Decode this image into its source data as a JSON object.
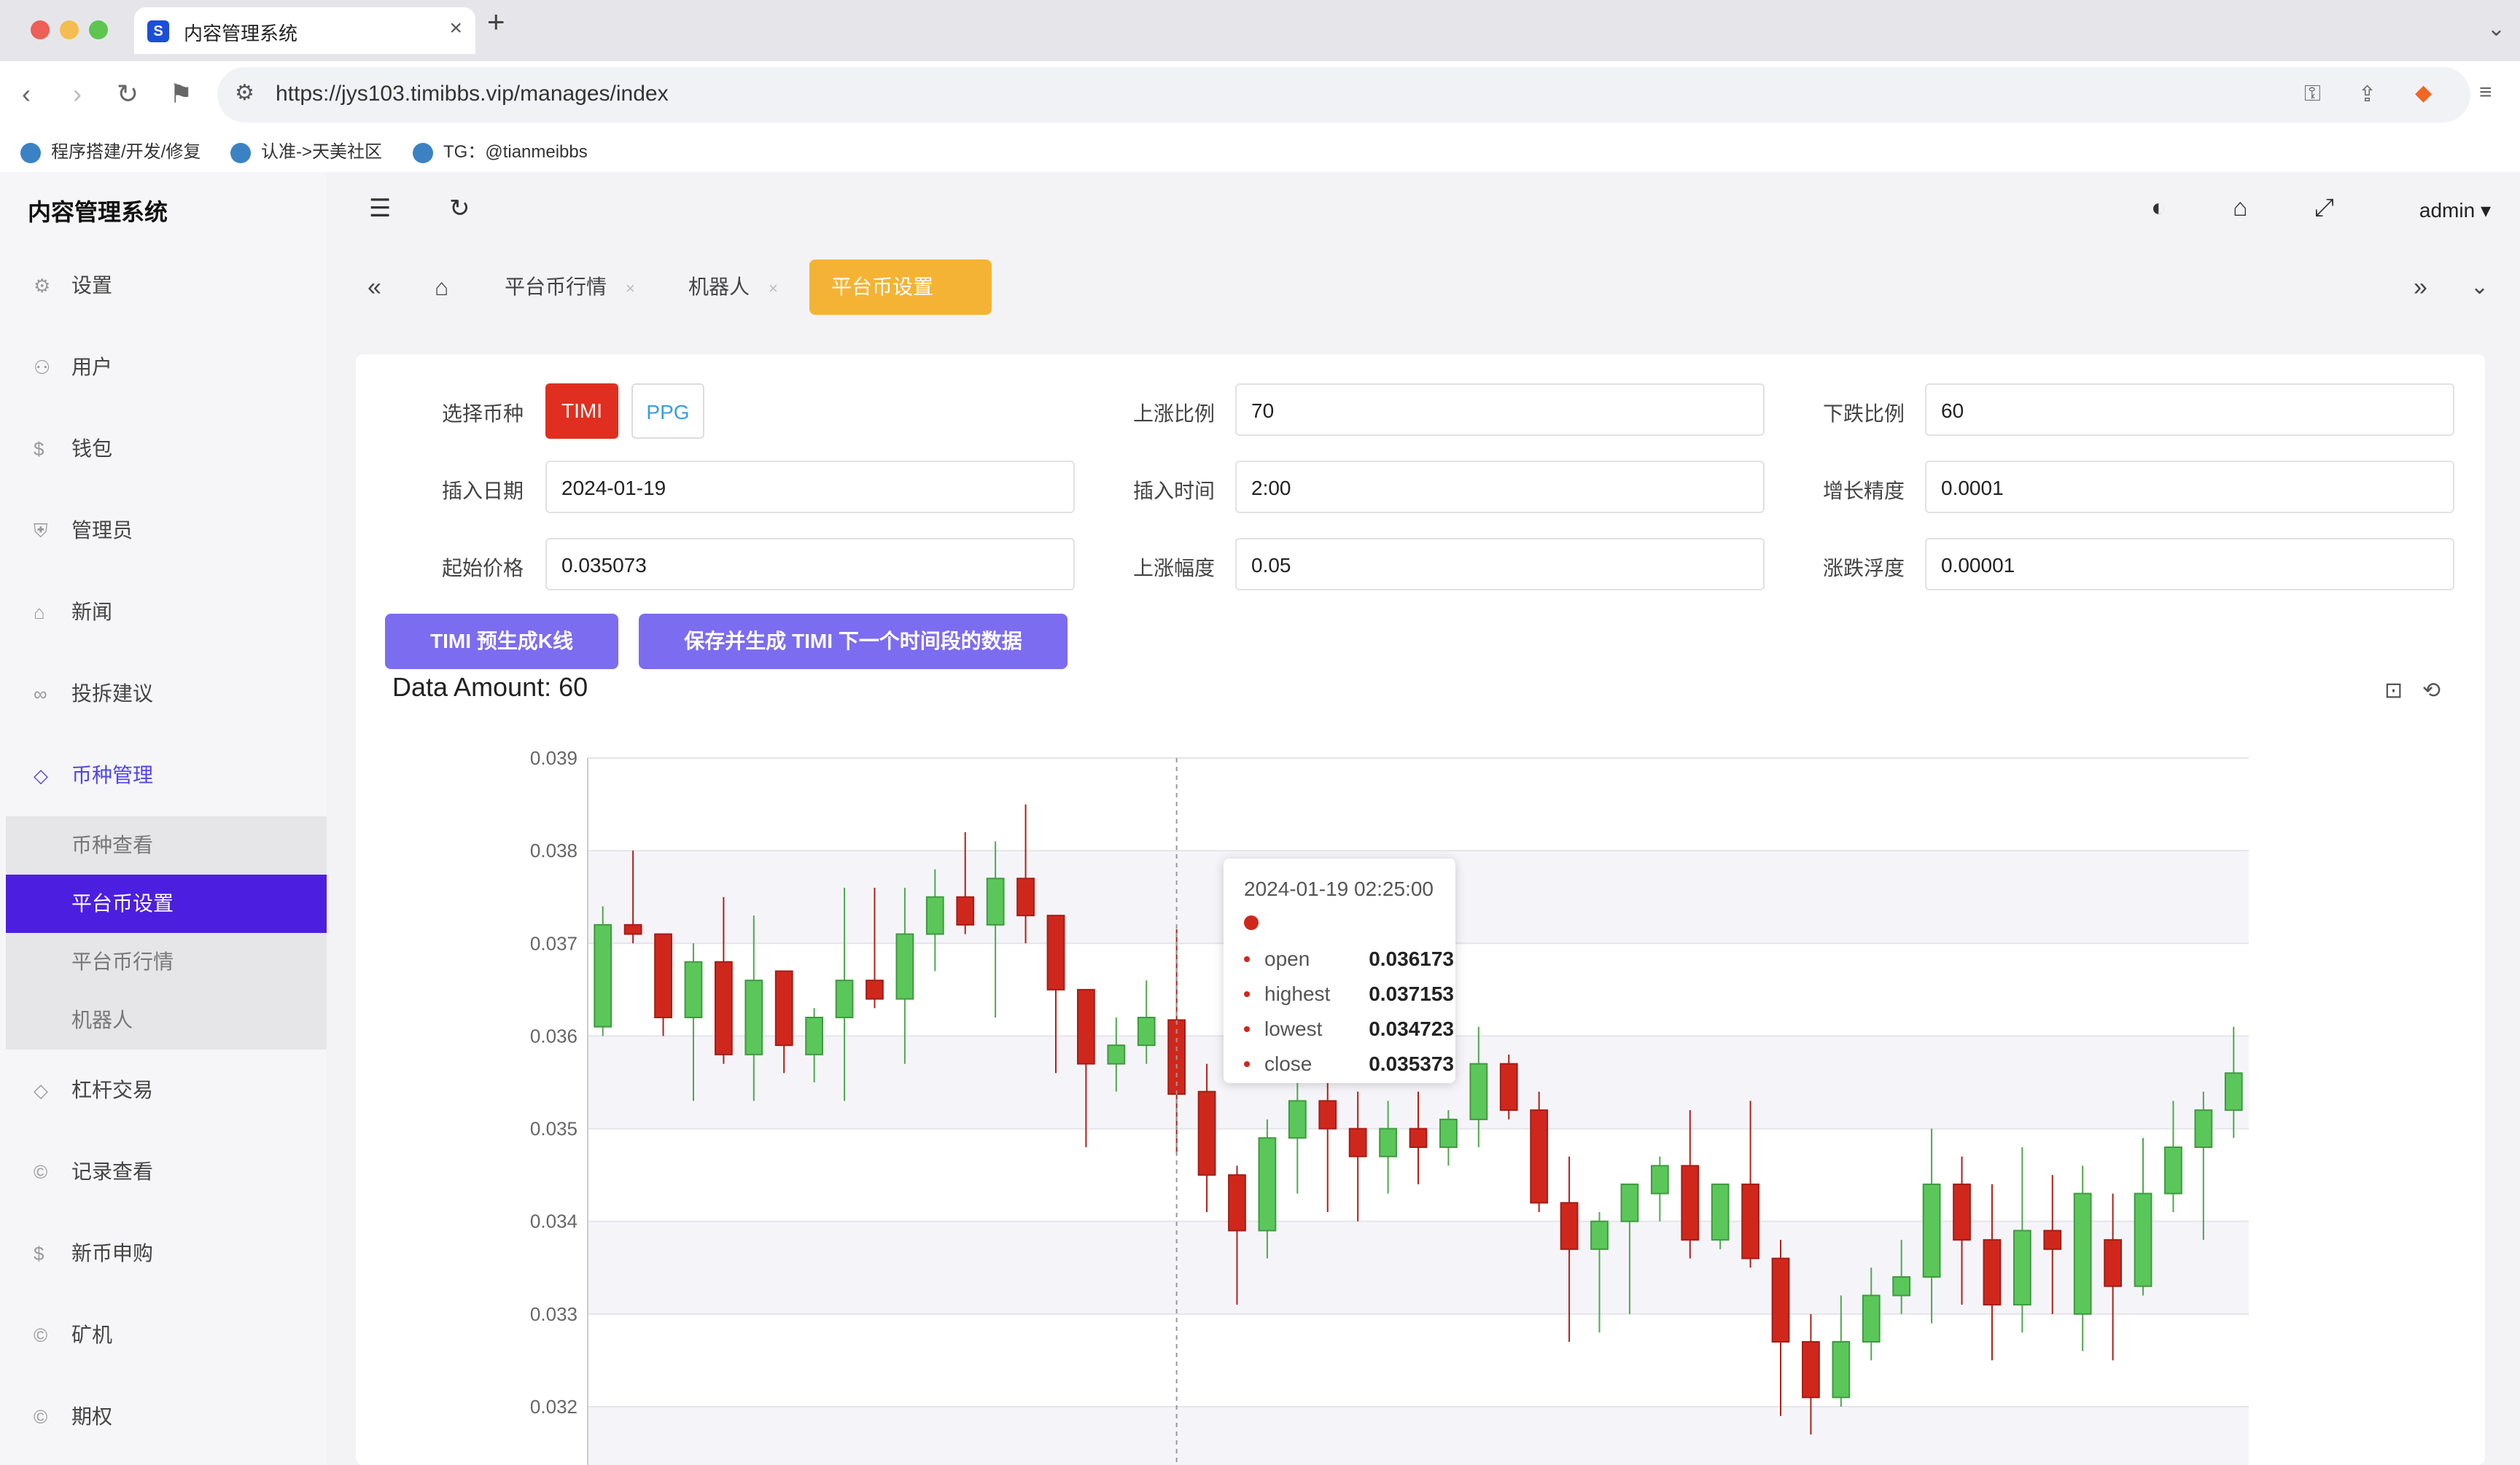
{
  "browser": {
    "tab_title": "内容管理系统",
    "url": "https://jys103.timibbs.vip/manages/index",
    "bookmarks": [
      "程序搭建/开发/修复",
      "认准->天美社区",
      "TG：@tianmeibbs"
    ]
  },
  "app": {
    "title": "内容管理系统",
    "user": "admin"
  },
  "sidebar": {
    "items": [
      {
        "label": "设置",
        "icon": "gear-icon"
      },
      {
        "label": "用户",
        "icon": "user-icon"
      },
      {
        "label": "钱包",
        "icon": "coin-icon"
      },
      {
        "label": "管理员",
        "icon": "shield-icon"
      },
      {
        "label": "新闻",
        "icon": "tag-icon"
      },
      {
        "label": "投拆建议",
        "icon": "link-icon"
      },
      {
        "label": "币种管理",
        "icon": "diamond-icon"
      }
    ],
    "submenu": [
      "币种查看",
      "平台币设置",
      "平台币行情",
      "机器人"
    ],
    "items2": [
      {
        "label": "杠杆交易",
        "icon": "diamond-icon"
      },
      {
        "label": "记录查看",
        "icon": "copyright-icon"
      },
      {
        "label": "新币申购",
        "icon": "coin-icon"
      },
      {
        "label": "矿机",
        "icon": "copyright-icon"
      },
      {
        "label": "期权",
        "icon": "copyright-icon"
      }
    ]
  },
  "tabs": [
    "平台币行情",
    "机器人",
    "平台币设置"
  ],
  "form": {
    "coin_label": "选择币种",
    "coins": [
      "TIMI",
      "PPG"
    ],
    "rise_ratio_label": "上涨比例",
    "rise_ratio": "70",
    "fall_ratio_label": "下跌比例",
    "fall_ratio": "60",
    "insert_date_label": "插入日期",
    "insert_date": "2024-01-19",
    "insert_time_label": "插入时间",
    "insert_time": "2:00",
    "precision_label": "增长精度",
    "precision": "0.0001",
    "start_price_label": "起始价格",
    "start_price": "0.035073",
    "rise_range_label": "上涨幅度",
    "rise_range": "0.05",
    "float_label": "涨跌浮度",
    "float": "0.00001"
  },
  "buttons": {
    "generate": "TIMI 预生成K线",
    "save": "保存并生成 TIMI 下一个时间段的数据"
  },
  "data_amount": "Data Amount: 60",
  "tooltip": {
    "time": "2024-01-19 02:25:00",
    "rows": [
      {
        "k": "open",
        "v": "0.036173"
      },
      {
        "k": "highest",
        "v": "0.037153"
      },
      {
        "k": "lowest",
        "v": "0.034723"
      },
      {
        "k": "close",
        "v": "0.035373"
      }
    ]
  },
  "colors": {
    "up": "#5bc75b",
    "down": "#d0271d",
    "accent": "#4c1fe0",
    "tab": "#f5b335"
  },
  "chart_data": {
    "type": "candlestick",
    "ylim": [
      0.0317,
      0.039
    ],
    "yticks": [
      "0.039",
      "0.038",
      "0.037",
      "0.036",
      "0.035",
      "0.034",
      "0.033",
      "0.032"
    ],
    "candles": [
      [
        0.0361,
        0.0372,
        0.0374,
        0.036
      ],
      [
        0.0372,
        0.0371,
        0.038,
        0.037
      ],
      [
        0.0371,
        0.0362,
        0.0371,
        0.036
      ],
      [
        0.0362,
        0.0368,
        0.037,
        0.0353
      ],
      [
        0.0368,
        0.0358,
        0.0375,
        0.0357
      ],
      [
        0.0358,
        0.0366,
        0.0373,
        0.0353
      ],
      [
        0.0367,
        0.0359,
        0.0367,
        0.0356
      ],
      [
        0.0358,
        0.0362,
        0.0363,
        0.0355
      ],
      [
        0.0362,
        0.0366,
        0.0376,
        0.0353
      ],
      [
        0.0366,
        0.0364,
        0.0376,
        0.0363
      ],
      [
        0.0364,
        0.0371,
        0.0376,
        0.0357
      ],
      [
        0.0371,
        0.0375,
        0.0378,
        0.0367
      ],
      [
        0.0375,
        0.0372,
        0.0382,
        0.0371
      ],
      [
        0.0372,
        0.0377,
        0.0381,
        0.0362
      ],
      [
        0.0377,
        0.0373,
        0.0385,
        0.037
      ],
      [
        0.0373,
        0.0365,
        0.0373,
        0.0356
      ],
      [
        0.0365,
        0.0357,
        0.0365,
        0.0348
      ],
      [
        0.0357,
        0.0359,
        0.0362,
        0.0354
      ],
      [
        0.0359,
        0.0362,
        0.0366,
        0.0357
      ],
      [
        0.036173,
        0.035373,
        0.037153,
        0.034723
      ],
      [
        0.0354,
        0.0345,
        0.0357,
        0.0341
      ],
      [
        0.0345,
        0.0339,
        0.0346,
        0.0331
      ],
      [
        0.0339,
        0.0349,
        0.0351,
        0.0336
      ],
      [
        0.0349,
        0.0353,
        0.0357,
        0.0343
      ],
      [
        0.0353,
        0.035,
        0.0356,
        0.0341
      ],
      [
        0.035,
        0.0347,
        0.0354,
        0.034
      ],
      [
        0.0347,
        0.035,
        0.0353,
        0.0343
      ],
      [
        0.035,
        0.0348,
        0.0354,
        0.0344
      ],
      [
        0.0348,
        0.0351,
        0.0352,
        0.0346
      ],
      [
        0.0351,
        0.0357,
        0.0361,
        0.0348
      ],
      [
        0.0357,
        0.0352,
        0.0358,
        0.0351
      ],
      [
        0.0352,
        0.0342,
        0.0354,
        0.0341
      ],
      [
        0.0342,
        0.0337,
        0.0347,
        0.0327
      ],
      [
        0.0337,
        0.034,
        0.0341,
        0.0328
      ],
      [
        0.034,
        0.0344,
        0.0344,
        0.033
      ],
      [
        0.0343,
        0.0346,
        0.0347,
        0.034
      ],
      [
        0.0346,
        0.0338,
        0.0352,
        0.0336
      ],
      [
        0.0338,
        0.0344,
        0.0344,
        0.0337
      ],
      [
        0.0344,
        0.0336,
        0.0353,
        0.0335
      ],
      [
        0.0336,
        0.0327,
        0.0338,
        0.0319
      ],
      [
        0.0327,
        0.0321,
        0.033,
        0.0317
      ],
      [
        0.0321,
        0.0327,
        0.0332,
        0.032
      ],
      [
        0.0327,
        0.0332,
        0.0335,
        0.0325
      ],
      [
        0.0332,
        0.0334,
        0.0338,
        0.033
      ],
      [
        0.0334,
        0.0344,
        0.035,
        0.0329
      ],
      [
        0.0344,
        0.0338,
        0.0347,
        0.0331
      ],
      [
        0.0338,
        0.0331,
        0.0344,
        0.0325
      ],
      [
        0.0331,
        0.0339,
        0.0348,
        0.0328
      ],
      [
        0.0339,
        0.0337,
        0.0345,
        0.033
      ],
      [
        0.033,
        0.0343,
        0.0346,
        0.0326
      ],
      [
        0.0338,
        0.0333,
        0.0343,
        0.0325
      ],
      [
        0.0333,
        0.0343,
        0.0349,
        0.0332
      ],
      [
        0.0343,
        0.0348,
        0.0353,
        0.0341
      ],
      [
        0.0348,
        0.0352,
        0.0354,
        0.0338
      ],
      [
        0.0352,
        0.0356,
        0.0361,
        0.0349
      ]
    ]
  }
}
